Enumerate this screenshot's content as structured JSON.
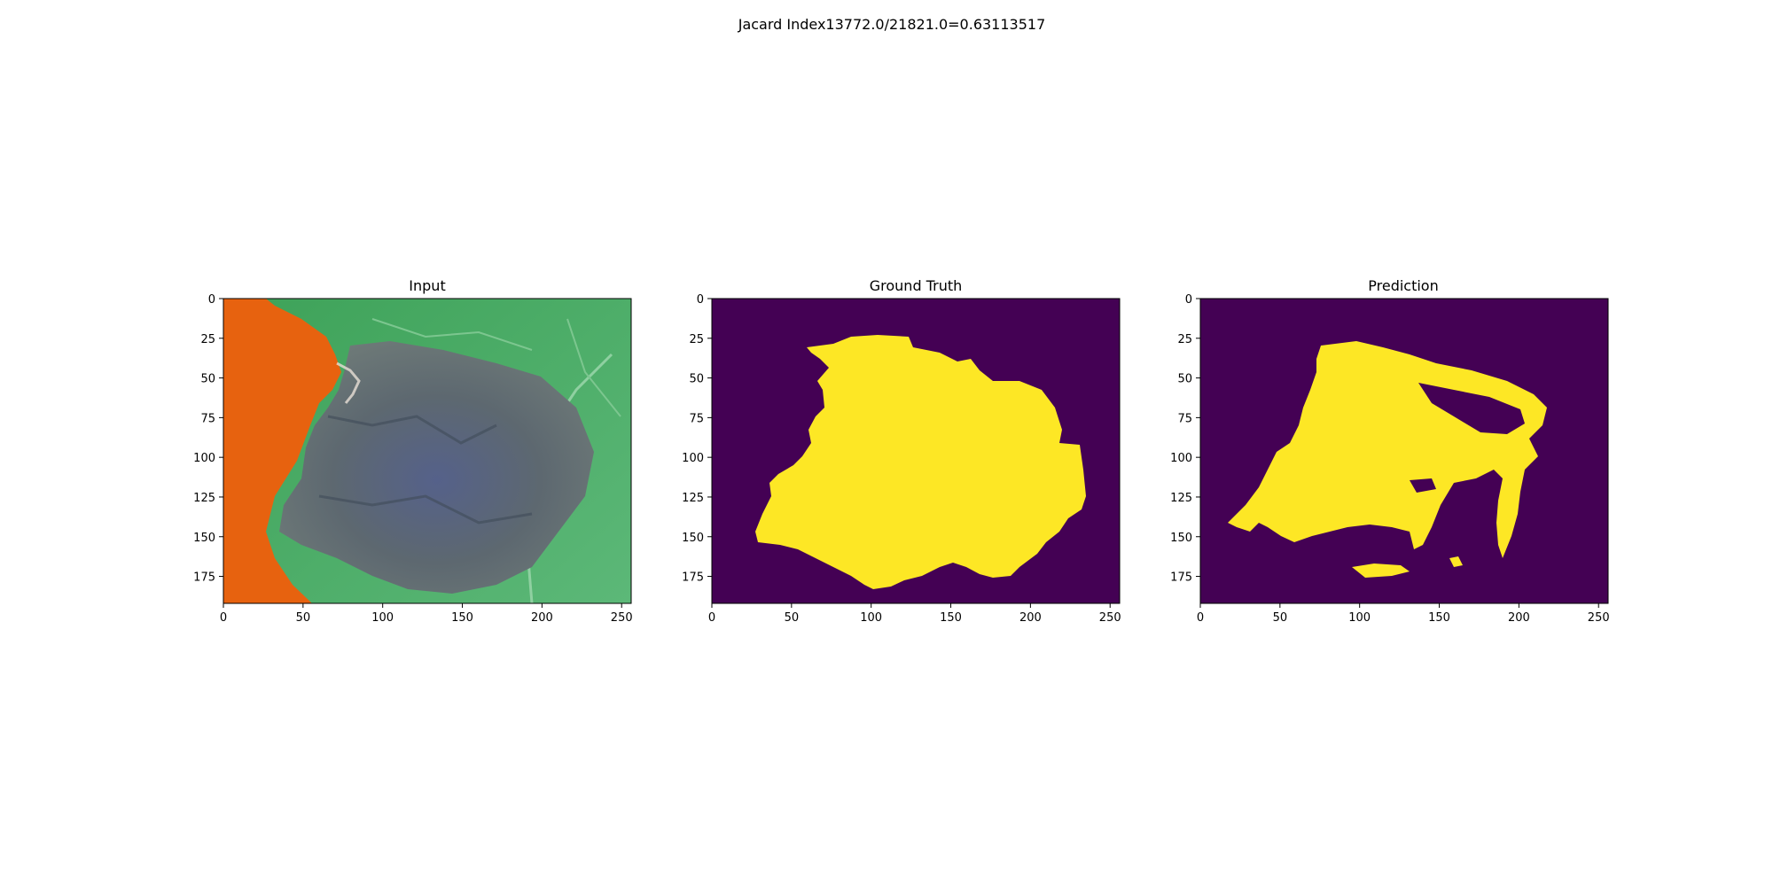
{
  "figure": {
    "suptitle": "Jacard Index13772.0/21821.0=0.63113517"
  },
  "panels": [
    {
      "key": "input",
      "title": "Input",
      "kind": "photo",
      "xlim": [
        0,
        256
      ],
      "ylim": [
        192,
        0
      ],
      "xticks": [
        0,
        50,
        100,
        150,
        200,
        250
      ],
      "yticks": [
        0,
        25,
        50,
        75,
        100,
        125,
        150,
        175
      ]
    },
    {
      "key": "ground-truth",
      "title": "Ground Truth",
      "kind": "mask",
      "xlim": [
        0,
        256
      ],
      "ylim": [
        192,
        0
      ],
      "xticks": [
        0,
        50,
        100,
        150,
        200,
        250
      ],
      "yticks": [
        0,
        25,
        50,
        75,
        100,
        125,
        150,
        175
      ]
    },
    {
      "key": "prediction",
      "title": "Prediction",
      "kind": "mask",
      "xlim": [
        0,
        256
      ],
      "ylim": [
        192,
        0
      ],
      "xticks": [
        0,
        50,
        100,
        150,
        200,
        250
      ],
      "yticks": [
        0,
        25,
        50,
        75,
        100,
        125,
        150,
        175
      ]
    }
  ],
  "colors": {
    "mask_background": "#440154",
    "mask_foreground": "#fde725",
    "photo_orange": "#e7620f",
    "photo_leaf_green": "#43a85f",
    "photo_leaf_light": "#6fc184",
    "photo_lesion_gray": "#5f6b73",
    "photo_lesion_blue": "#4e5d82",
    "axis_line": "#000000"
  }
}
